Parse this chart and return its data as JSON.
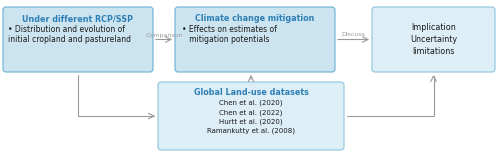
{
  "box1_title": "Under different RCP/SSP",
  "box1_body": "• Distribution and evolution of\ninitial cropland and pastureland",
  "box2_title": "Climate change mitigation",
  "box2_body": "• Effects on estimates of\n   mitigation potentials",
  "box3_title": "Implication\nUncertainty\nlimitations",
  "box_bottom_title": "Global Land-use datasets",
  "box_bottom_refs": "Chen et al. (2020)\nChen et al. (2022)\nHurtt et al. (2020)\nRamankutty et al. (2008)",
  "arrow1_label": "Comparison",
  "arrow2_label": "Discuss",
  "box_fill_blue": "#cce4f0",
  "box_fill_light": "#ddeef7",
  "box_stroke": "#6aafd4",
  "box_stroke_light": "#8dc4de",
  "title_color": "#2e7fb5",
  "body_color": "#1a1a1a",
  "arrow_color": "#999999",
  "bg_color": "#ffffff"
}
